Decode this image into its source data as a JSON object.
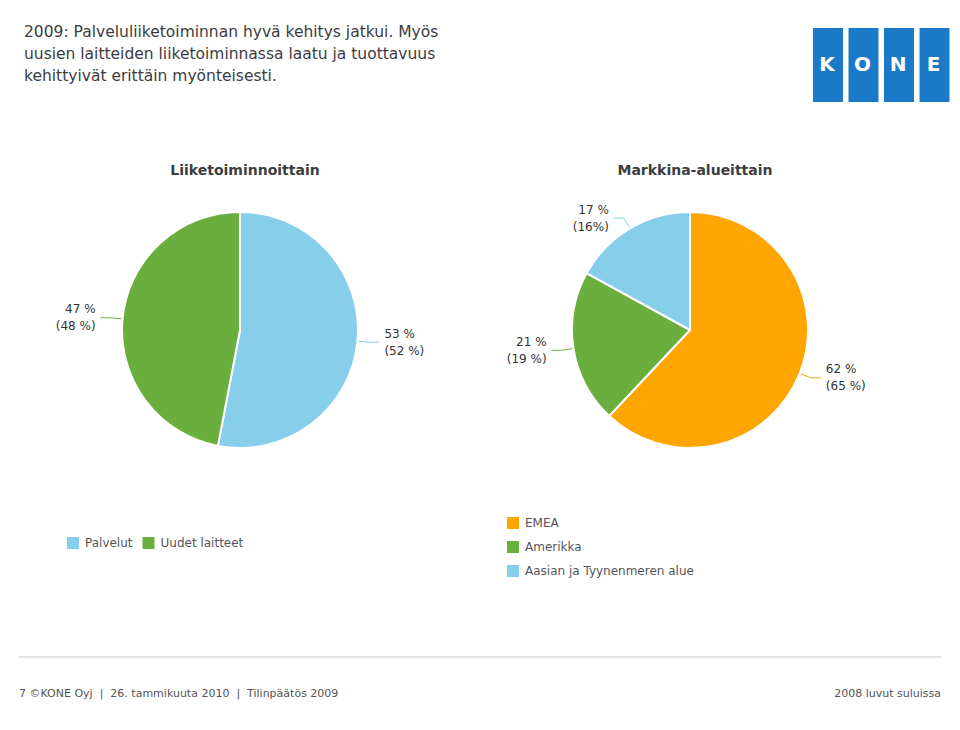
{
  "title": "2009: Palveluliiketoiminnan hyvä kehitys jatkui. Myös\nuusien laitteiden liiketoiminnassa laatu ja tuottavuus\nkehittyivät erittäin myönteisesti.",
  "annotations": [
    {
      "text": "KONE",
      "color": "#1A7AC7"
    },
    {
      "text": "7 ©KONE Oyj  |  26. tammikuuta 2010  |  Tilinpäätös 2009"
    },
    {
      "text": "2008 luvut suluissa"
    }
  ],
  "chart_data": [
    {
      "type": "pie",
      "title": "Liiketoiminnoittain",
      "categories": [
        "Palvelut",
        "Uudet laitteet"
      ],
      "values": [
        53,
        47
      ],
      "value_labels": [
        "53 %\n(52 %)",
        "47 %\n(48 %)"
      ],
      "colors": [
        "#87CEEB",
        "#6AAF3D"
      ],
      "data_labels": true,
      "legend": "bottom"
    },
    {
      "type": "pie",
      "title": "Markkina-alueittain",
      "categories": [
        "EMEA",
        "Amerikka",
        "Aasian ja Tyynenmeren alue"
      ],
      "values": [
        62,
        21,
        17
      ],
      "value_labels": [
        "62 %\n(65 %)",
        "21 %\n(19 %)",
        "17 %\n(16%)"
      ],
      "colors": [
        "#FFA500",
        "#6AAF3D",
        "#87CEEB"
      ],
      "data_labels": true,
      "legend": "bottom"
    }
  ]
}
